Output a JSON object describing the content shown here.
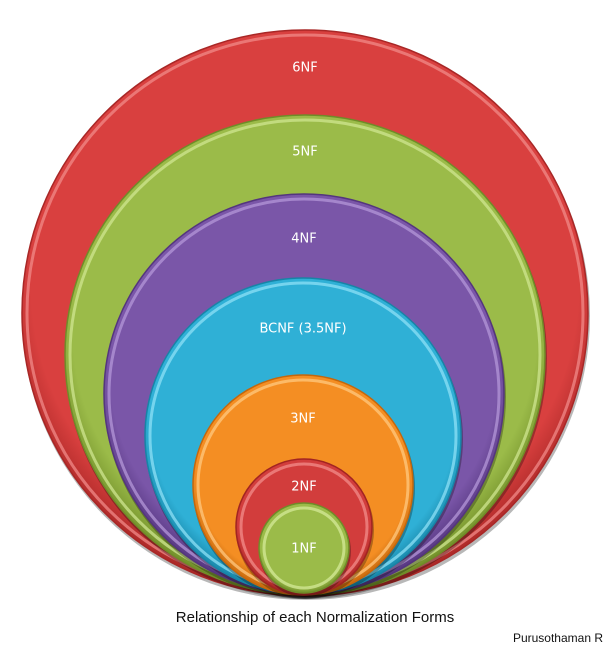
{
  "diagram": {
    "levels": [
      {
        "label": "6NF",
        "color": "#d9403f",
        "light": "#f08a88",
        "dark": "#a82726"
      },
      {
        "label": "5NF",
        "color": "#9bbb49",
        "light": "#cfe690",
        "dark": "#6f8c28"
      },
      {
        "label": "4NF",
        "color": "#7a56a8",
        "light": "#b497d8",
        "dark": "#54357e"
      },
      {
        "label": "BCNF (3.5NF)",
        "color": "#2fb0d6",
        "light": "#8ee0f6",
        "dark": "#1784a6"
      },
      {
        "label": "3NF",
        "color": "#f48e23",
        "light": "#ffc880",
        "dark": "#c4670c"
      },
      {
        "label": "2NF",
        "color": "#d23d3c",
        "light": "#f28c8a",
        "dark": "#a22422"
      },
      {
        "label": "1NF",
        "color": "#9bbb49",
        "light": "#d4ea98",
        "dark": "#6f8c28"
      }
    ]
  },
  "caption": "Relationship of each Normalization Forms",
  "author": "Purusothaman R"
}
